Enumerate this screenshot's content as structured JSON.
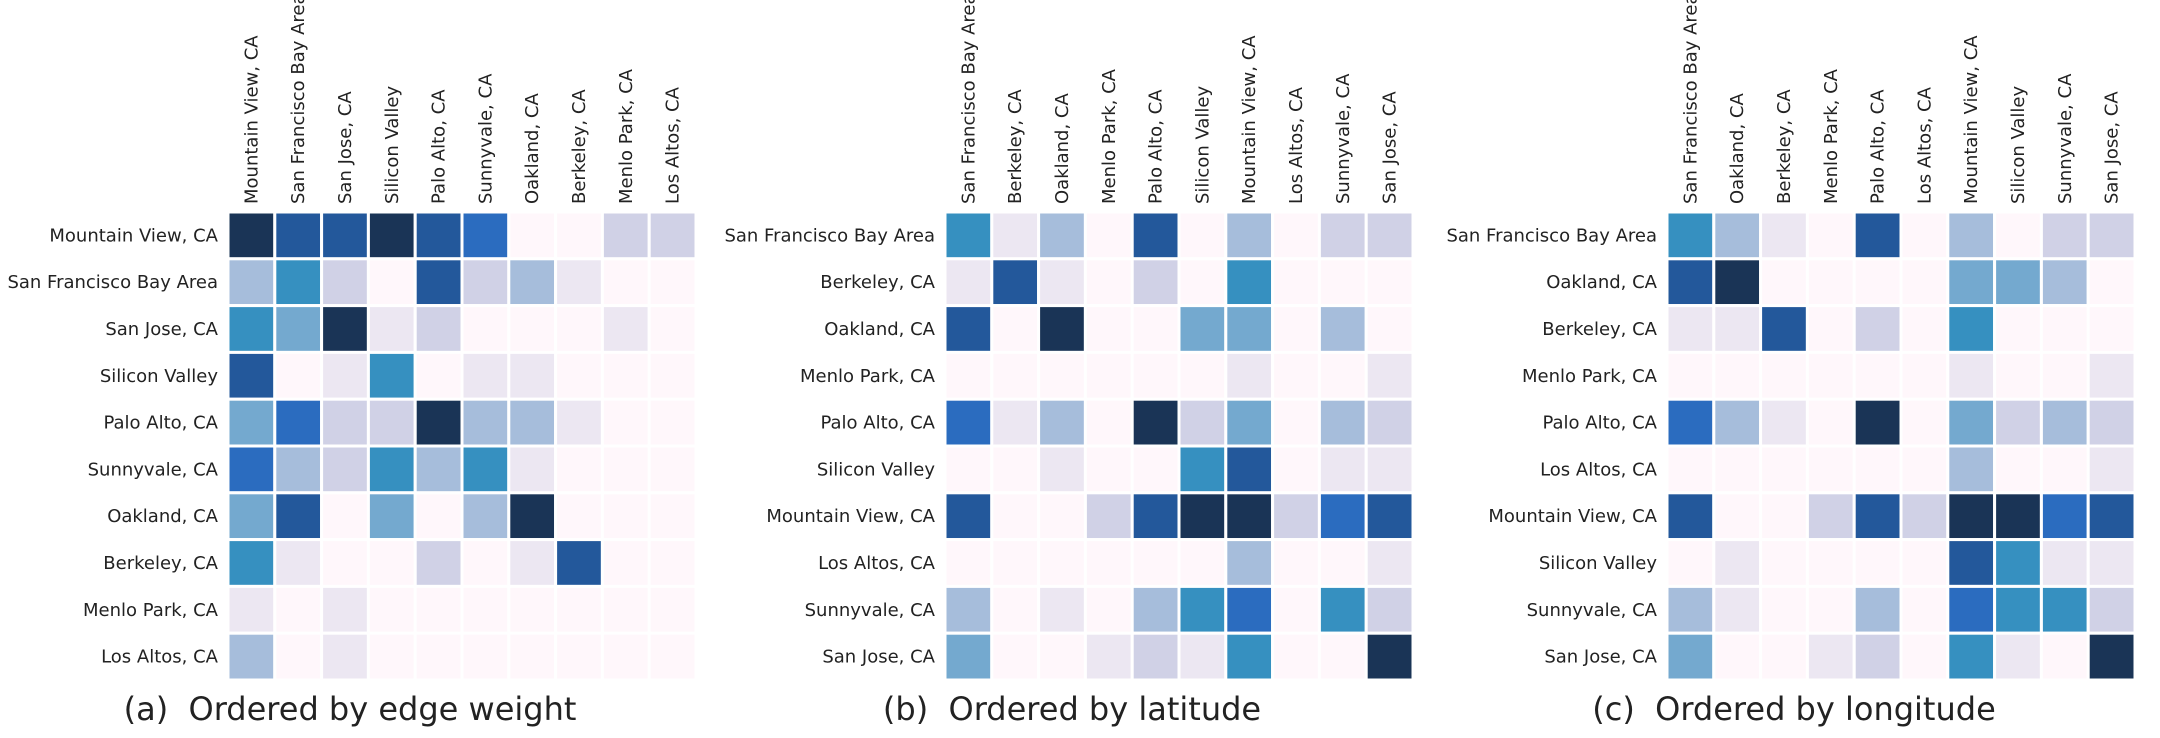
{
  "colors": {
    "scale": [
      "#fff7fb",
      "#ece7f2",
      "#d0d1e6",
      "#a6bddb",
      "#74a9cf",
      "#3690c0",
      "#2b6cbf",
      "#23589b",
      "#1a3456"
    ]
  },
  "chart_data": [
    {
      "type": "heatmap",
      "panel_tag": "(a)",
      "title": "Ordered by edge weight",
      "rows": [
        "Mountain View, CA",
        "San Francisco Bay Area",
        "San Jose, CA",
        "Silicon Valley",
        "Palo Alto, CA",
        "Sunnyvale, CA",
        "Oakland, CA",
        "Berkeley, CA",
        "Menlo Park, CA",
        "Los Altos, CA"
      ],
      "columns": [
        "Mountain View, CA",
        "San Francisco Bay Area",
        "San Jose, CA",
        "Silicon Valley",
        "Palo Alto, CA",
        "Sunnyvale, CA",
        "Oakland, CA",
        "Berkeley, CA",
        "Menlo Park, CA",
        "Los Altos, CA"
      ],
      "values": [
        [
          8,
          7,
          7,
          8,
          7,
          6,
          0,
          0,
          2,
          2
        ],
        [
          3,
          5,
          2,
          0,
          7,
          2,
          3,
          1,
          0,
          0
        ],
        [
          5,
          4,
          8,
          1,
          2,
          0,
          0,
          0,
          1,
          0
        ],
        [
          7,
          0,
          1,
          5,
          0,
          1,
          1,
          0,
          0,
          0
        ],
        [
          4,
          6,
          2,
          2,
          8,
          3,
          3,
          1,
          0,
          0
        ],
        [
          6,
          3,
          2,
          5,
          3,
          5,
          1,
          0,
          0,
          0
        ],
        [
          4,
          7,
          0,
          4,
          0,
          3,
          8,
          0,
          0,
          0
        ],
        [
          5,
          1,
          0,
          0,
          2,
          0,
          1,
          7,
          0,
          0
        ],
        [
          1,
          0,
          1,
          0,
          0,
          0,
          0,
          0,
          0,
          0
        ],
        [
          3,
          0,
          1,
          0,
          0,
          0,
          0,
          0,
          0,
          0
        ]
      ],
      "value_scale": [
        0,
        8
      ]
    },
    {
      "type": "heatmap",
      "panel_tag": "(b)",
      "title": "Ordered by latitude",
      "rows": [
        "San Francisco Bay Area",
        "Berkeley, CA",
        "Oakland, CA",
        "Menlo Park, CA",
        "Palo Alto, CA",
        "Silicon Valley",
        "Mountain View, CA",
        "Los Altos, CA",
        "Sunnyvale, CA",
        "San Jose, CA"
      ],
      "columns": [
        "San Francisco Bay Area",
        "Berkeley, CA",
        "Oakland, CA",
        "Menlo Park, CA",
        "Palo Alto, CA",
        "Silicon Valley",
        "Mountain View, CA",
        "Los Altos, CA",
        "Sunnyvale, CA",
        "San Jose, CA"
      ],
      "values": [
        [
          5,
          1,
          3,
          0,
          7,
          0,
          3,
          0,
          2,
          2
        ],
        [
          1,
          7,
          1,
          0,
          2,
          0,
          5,
          0,
          0,
          0
        ],
        [
          7,
          0,
          8,
          0,
          0,
          4,
          4,
          0,
          3,
          0
        ],
        [
          0,
          0,
          0,
          0,
          0,
          0,
          1,
          0,
          0,
          1
        ],
        [
          6,
          1,
          3,
          0,
          8,
          2,
          4,
          0,
          3,
          2
        ],
        [
          0,
          0,
          1,
          0,
          0,
          5,
          7,
          0,
          1,
          1
        ],
        [
          7,
          0,
          0,
          2,
          7,
          8,
          8,
          2,
          6,
          7
        ],
        [
          0,
          0,
          0,
          0,
          0,
          0,
          3,
          0,
          0,
          1
        ],
        [
          3,
          0,
          1,
          0,
          3,
          5,
          6,
          0,
          5,
          2
        ],
        [
          4,
          0,
          0,
          1,
          2,
          1,
          5,
          0,
          0,
          8
        ]
      ],
      "value_scale": [
        0,
        8
      ]
    },
    {
      "type": "heatmap",
      "panel_tag": "(c)",
      "title": "Ordered by longitude",
      "rows": [
        "San Francisco Bay Area",
        "Oakland, CA",
        "Berkeley, CA",
        "Menlo Park, CA",
        "Palo Alto, CA",
        "Los Altos, CA",
        "Mountain View, CA",
        "Silicon Valley",
        "Sunnyvale, CA",
        "San Jose, CA"
      ],
      "columns": [
        "San Francisco Bay Area",
        "Oakland, CA",
        "Berkeley, CA",
        "Menlo Park, CA",
        "Palo Alto, CA",
        "Los Altos, CA",
        "Mountain View, CA",
        "Silicon Valley",
        "Sunnyvale, CA",
        "San Jose, CA"
      ],
      "values": [
        [
          5,
          3,
          1,
          0,
          7,
          0,
          3,
          0,
          2,
          2
        ],
        [
          7,
          8,
          0,
          0,
          0,
          0,
          4,
          4,
          3,
          0
        ],
        [
          1,
          1,
          7,
          0,
          2,
          0,
          5,
          0,
          0,
          0
        ],
        [
          0,
          0,
          0,
          0,
          0,
          0,
          1,
          0,
          0,
          1
        ],
        [
          6,
          3,
          1,
          0,
          8,
          0,
          4,
          2,
          3,
          2
        ],
        [
          0,
          0,
          0,
          0,
          0,
          0,
          3,
          0,
          0,
          1
        ],
        [
          7,
          0,
          0,
          2,
          7,
          2,
          8,
          8,
          6,
          7
        ],
        [
          0,
          1,
          0,
          0,
          0,
          0,
          7,
          5,
          1,
          1
        ],
        [
          3,
          1,
          0,
          0,
          3,
          0,
          6,
          5,
          5,
          2
        ],
        [
          4,
          0,
          0,
          1,
          2,
          0,
          5,
          1,
          0,
          8
        ]
      ],
      "value_scale": [
        0,
        8
      ]
    }
  ]
}
